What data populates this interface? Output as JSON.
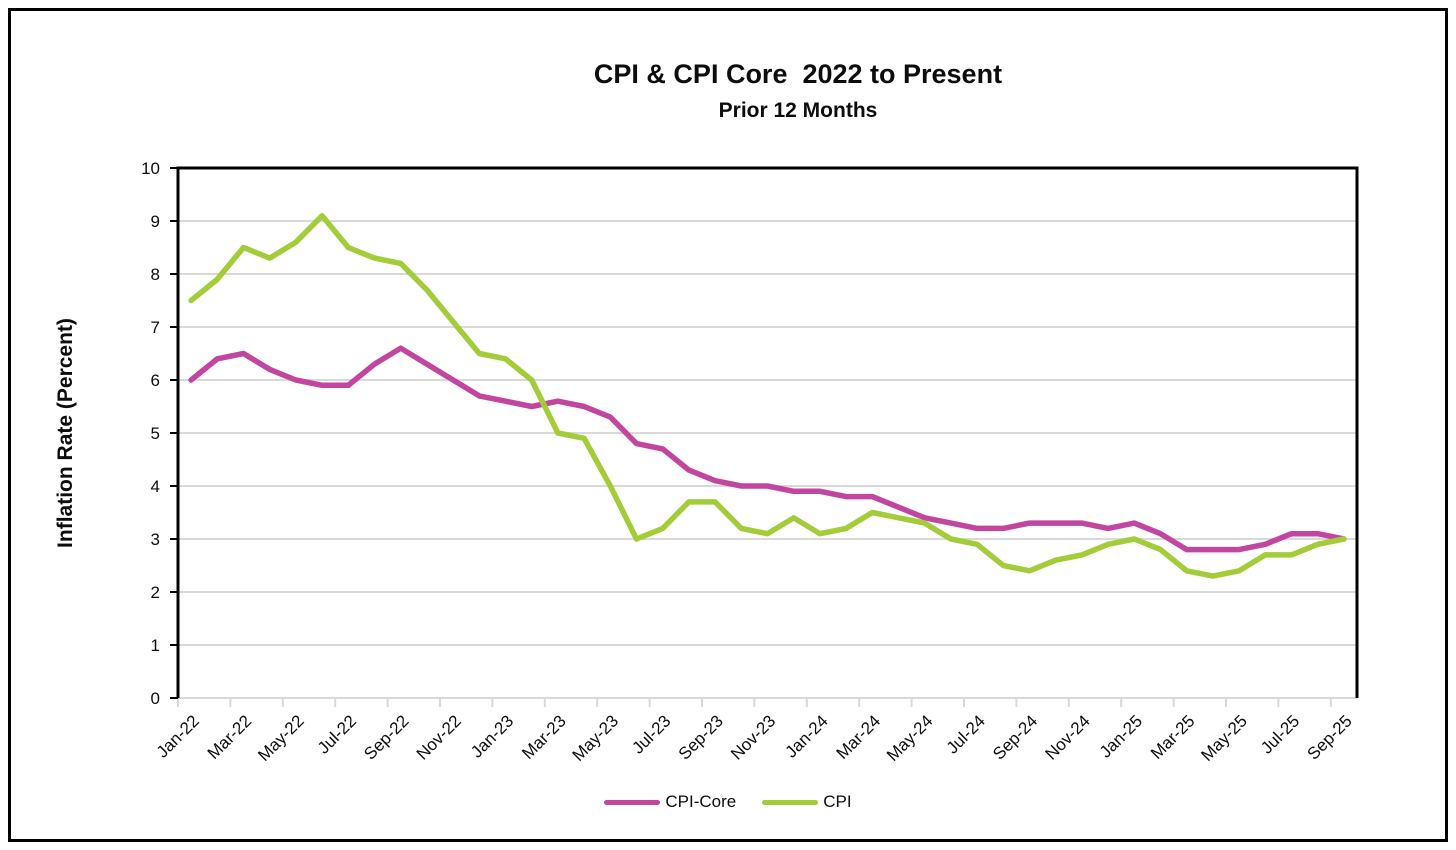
{
  "title": "CPI & CPI Core  2022 to Present",
  "subtitle": "Prior 12 Months",
  "y_axis": {
    "title": "Inflation Rate (Percent)",
    "min": 0,
    "max": 10,
    "tick_interval": 1
  },
  "colors": {
    "cpi_core_line": "#C2469F",
    "cpi_line": "#A3CC39",
    "gridline": "#D9D9D9",
    "axis_line": "#000000",
    "x_axis_line": "#D9D9D9",
    "text": "#0d0d0d"
  },
  "legend": {
    "items": [
      {
        "label": "CPI-Core",
        "color": "#C2469F"
      },
      {
        "label": "CPI",
        "color": "#A3CC39"
      }
    ],
    "position": "bottom-center"
  },
  "chart_data": {
    "type": "line",
    "title": "CPI & CPI Core  2022 to Present",
    "subtitle": "Prior 12 Months",
    "xlabel": "",
    "ylabel": "Inflation Rate (Percent)",
    "ylim": [
      0,
      10
    ],
    "y_ticks": [
      0,
      1,
      2,
      3,
      4,
      5,
      6,
      7,
      8,
      9,
      10
    ],
    "grid": "horizontal-only",
    "legend_position": "bottom-center",
    "x_tick_label_interval": 2,
    "x": [
      "Jan-22",
      "Feb-22",
      "Mar-22",
      "Apr-22",
      "May-22",
      "Jun-22",
      "Jul-22",
      "Aug-22",
      "Sep-22",
      "Oct-22",
      "Nov-22",
      "Dec-22",
      "Jan-23",
      "Feb-23",
      "Mar-23",
      "Apr-23",
      "May-23",
      "Jun-23",
      "Jul-23",
      "Aug-23",
      "Sep-23",
      "Oct-23",
      "Nov-23",
      "Dec-23",
      "Jan-24",
      "Feb-24",
      "Mar-24",
      "Apr-24",
      "May-24",
      "Jun-24",
      "Jul-24",
      "Aug-24",
      "Sep-24",
      "Oct-24",
      "Nov-24",
      "Dec-24",
      "Jan-25",
      "Feb-25",
      "Mar-25",
      "Apr-25",
      "May-25",
      "Jun-25",
      "Jul-25",
      "Aug-25",
      "Sep-25"
    ],
    "visible_x_tick_labels": [
      "Jan-22",
      "Mar-22",
      "May-22",
      "Jul-22",
      "Sep-22",
      "Nov-22",
      "Jan-23",
      "Mar-23",
      "May-23",
      "Jul-23",
      "Sep-23",
      "Nov-23",
      "Jan-24",
      "Mar-24",
      "May-24",
      "Jul-24",
      "Sep-24",
      "Nov-24",
      "Jan-25",
      "Mar-25",
      "May-25",
      "Jul-25",
      "Sep-25"
    ],
    "series": [
      {
        "name": "CPI-Core",
        "color": "#C2469F",
        "values": [
          6.0,
          6.4,
          6.5,
          6.2,
          6.0,
          5.9,
          5.9,
          6.3,
          6.6,
          6.3,
          6.0,
          5.7,
          5.6,
          5.5,
          5.6,
          5.5,
          5.3,
          4.8,
          4.7,
          4.3,
          4.1,
          4.0,
          4.0,
          3.9,
          3.9,
          3.8,
          3.8,
          3.6,
          3.4,
          3.3,
          3.2,
          3.2,
          3.3,
          3.3,
          3.3,
          3.2,
          3.3,
          3.1,
          2.8,
          2.8,
          2.8,
          2.9,
          3.1,
          3.1,
          3.0
        ]
      },
      {
        "name": "CPI",
        "color": "#A3CC39",
        "values": [
          7.5,
          7.9,
          8.5,
          8.3,
          8.6,
          9.1,
          8.5,
          8.3,
          8.2,
          7.7,
          7.1,
          6.5,
          6.4,
          6.0,
          5.0,
          4.9,
          4.0,
          3.0,
          3.2,
          3.7,
          3.7,
          3.2,
          3.1,
          3.4,
          3.1,
          3.2,
          3.5,
          3.4,
          3.3,
          3.0,
          2.9,
          2.5,
          2.4,
          2.6,
          2.7,
          2.9,
          3.0,
          2.8,
          2.4,
          2.3,
          2.4,
          2.7,
          2.7,
          2.9,
          3.0
        ]
      }
    ]
  }
}
